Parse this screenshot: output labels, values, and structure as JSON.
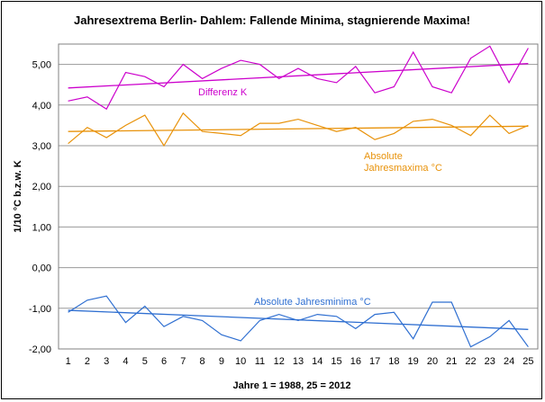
{
  "chart_data": {
    "type": "line",
    "title": "Jahresextrema Berlin- Dahlem: Fallende Minima, stagnierende Maxima!",
    "xlabel": "Jahre 1 = 1988, 25 = 2012",
    "ylabel": "1/10 °C b.z.w. K",
    "x": [
      1,
      2,
      3,
      4,
      5,
      6,
      7,
      8,
      9,
      10,
      11,
      12,
      13,
      14,
      15,
      16,
      17,
      18,
      19,
      20,
      21,
      22,
      23,
      24,
      25
    ],
    "ylim": [
      -2.0,
      5.5
    ],
    "yticks": [
      -2.0,
      -1.0,
      0.0,
      1.0,
      2.0,
      3.0,
      4.0,
      5.0
    ],
    "ytick_labels": [
      "-2,00",
      "-1,00",
      "0,00",
      "1,00",
      "2,00",
      "3,00",
      "4,00",
      "5,00"
    ],
    "grid": true,
    "series": [
      {
        "name": "Differenz K",
        "color": "#cc00cc",
        "values": [
          4.1,
          4.2,
          3.9,
          4.8,
          4.7,
          4.45,
          5.0,
          4.65,
          4.9,
          5.1,
          5.0,
          4.65,
          4.9,
          4.65,
          4.55,
          4.95,
          4.3,
          4.45,
          5.3,
          4.45,
          4.3,
          5.15,
          5.45,
          4.55,
          5.4
        ],
        "trend": [
          4.42,
          5.02
        ]
      },
      {
        "name": "Absolute Jahresmaxima °C",
        "color": "#e8920a",
        "values": [
          3.05,
          3.45,
          3.2,
          3.5,
          3.75,
          3.0,
          3.8,
          3.35,
          3.3,
          3.25,
          3.55,
          3.55,
          3.65,
          3.5,
          3.35,
          3.45,
          3.15,
          3.3,
          3.6,
          3.65,
          3.5,
          3.25,
          3.75,
          3.3,
          3.5
        ],
        "trend": [
          3.35,
          3.48
        ]
      },
      {
        "name": "Absolute Jahresminima °C",
        "color": "#2f6fd1",
        "values": [
          -1.1,
          -0.8,
          -0.7,
          -1.35,
          -0.95,
          -1.45,
          -1.2,
          -1.3,
          -1.65,
          -1.8,
          -1.3,
          -1.15,
          -1.3,
          -1.15,
          -1.2,
          -1.5,
          -1.15,
          -1.1,
          -1.75,
          -0.85,
          -0.85,
          -1.95,
          -1.7,
          -1.3,
          -1.95
        ],
        "trend": [
          -1.05,
          -1.52
        ]
      }
    ],
    "annotations": [
      {
        "series": 0,
        "text": "Differenz K"
      },
      {
        "series": 1,
        "text": "Absolute Jahresmaxima °C"
      },
      {
        "series": 2,
        "text": "Absolute Jahresminima °C"
      }
    ]
  }
}
